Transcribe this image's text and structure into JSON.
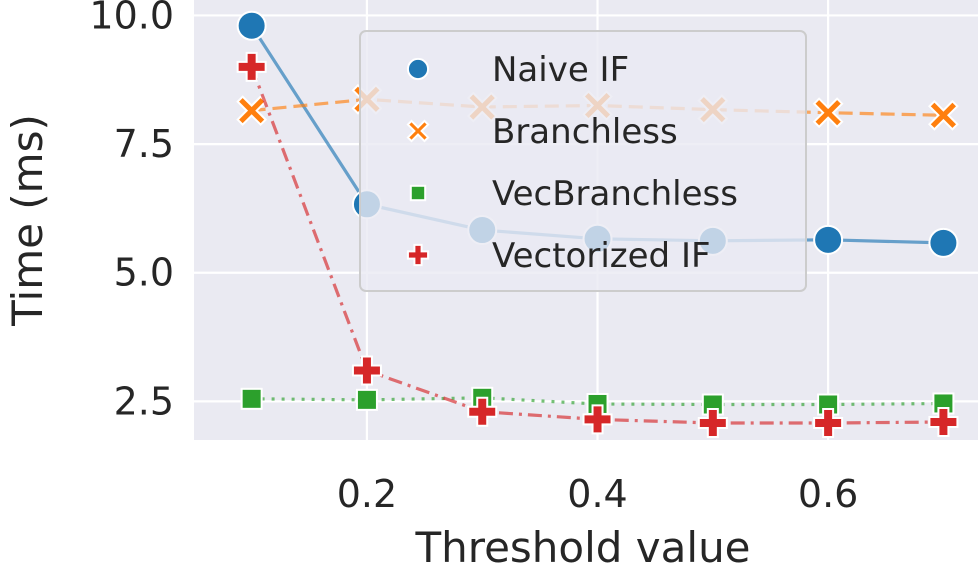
{
  "chart_data": {
    "type": "line",
    "title": "",
    "xlabel": "Threshold value",
    "ylabel": "Time (ms)",
    "xlim": [
      0.05,
      0.73
    ],
    "ylim": [
      1.75,
      10.3
    ],
    "x_ticks": [
      0.2,
      0.4,
      0.6
    ],
    "x_tick_labels": [
      "0.2",
      "0.4",
      "0.6"
    ],
    "y_ticks": [
      2.5,
      5.0,
      7.5,
      10.0
    ],
    "y_tick_labels": [
      "2.5",
      "5.0",
      "7.5",
      "10.0"
    ],
    "grid": true,
    "legend_position": "top-center",
    "x": [
      0.1,
      0.2,
      0.3,
      0.4,
      0.5,
      0.6,
      0.7
    ],
    "series": [
      {
        "name": "Naive IF",
        "color": "#1f77b4",
        "marker": "circle",
        "line_style": "solid",
        "values": [
          9.8,
          6.33,
          5.83,
          5.66,
          5.62,
          5.64,
          5.58
        ]
      },
      {
        "name": "Branchless",
        "color": "#ff7f0e",
        "marker": "x",
        "line_style": "dashed",
        "values": [
          8.15,
          8.37,
          8.22,
          8.25,
          8.17,
          8.11,
          8.06
        ]
      },
      {
        "name": "VecBranchless",
        "color": "#2ca02c",
        "marker": "square",
        "line_style": "dotted",
        "values": [
          2.55,
          2.53,
          2.57,
          2.45,
          2.44,
          2.44,
          2.46
        ]
      },
      {
        "name": "Vectorized IF",
        "color": "#d62728",
        "marker": "plus",
        "line_style": "dashdot",
        "values": [
          9.0,
          3.1,
          2.3,
          2.15,
          2.08,
          2.08,
          2.1
        ]
      }
    ]
  }
}
